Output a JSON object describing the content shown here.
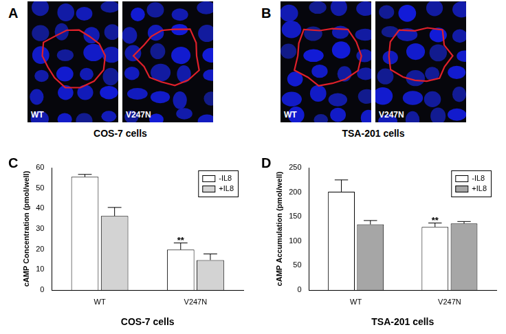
{
  "panels": [
    {
      "panel": "A",
      "images": [
        "WT",
        "V247N"
      ],
      "caption": "COS-7 cells"
    },
    {
      "panel": "B",
      "images": [
        "WT",
        "V247N"
      ],
      "caption": "TSA-201 cells"
    }
  ],
  "chart_data": [
    {
      "type": "bar",
      "panel": "C",
      "y_label": "cAMP Concentration (pmol/well)",
      "x_label": "COS-7 cells",
      "categories": [
        "WT",
        "V247N"
      ],
      "series": [
        {
          "name": "-IL8",
          "color": "#ffffff",
          "values": [
            55.5,
            19.8
          ],
          "errors": [
            1.2,
            3.3
          ]
        },
        {
          "name": "+IL8",
          "color": "#d3d3d3",
          "values": [
            36.3,
            14.7
          ],
          "errors": [
            4.2,
            3.0
          ]
        }
      ],
      "ylim": [
        0,
        60
      ],
      "yticks": [
        0,
        10,
        20,
        30,
        40,
        50,
        60
      ],
      "grid": false,
      "legend": "top-right",
      "annotations": [
        {
          "text": "**",
          "category": "V247N",
          "series": "-IL8"
        }
      ]
    },
    {
      "type": "bar",
      "panel": "D",
      "y_label": "cAMP Accumulation (pmol/well)",
      "x_label": "TSA-201 cells",
      "categories": [
        "WT",
        "V247N"
      ],
      "series": [
        {
          "name": "-IL8",
          "color": "#ffffff",
          "values": [
            201,
            129
          ],
          "errors": [
            24,
            8
          ]
        },
        {
          "name": "+IL8",
          "color": "#a6a6a6",
          "values": [
            134,
            136
          ],
          "errors": [
            8,
            4
          ]
        }
      ],
      "ylim": [
        0,
        250
      ],
      "yticks": [
        0,
        50,
        100,
        150,
        200,
        250
      ],
      "grid": false,
      "legend": "top-right",
      "annotations": [
        {
          "text": "**",
          "category": "V247N",
          "series": "-IL8"
        }
      ]
    }
  ]
}
